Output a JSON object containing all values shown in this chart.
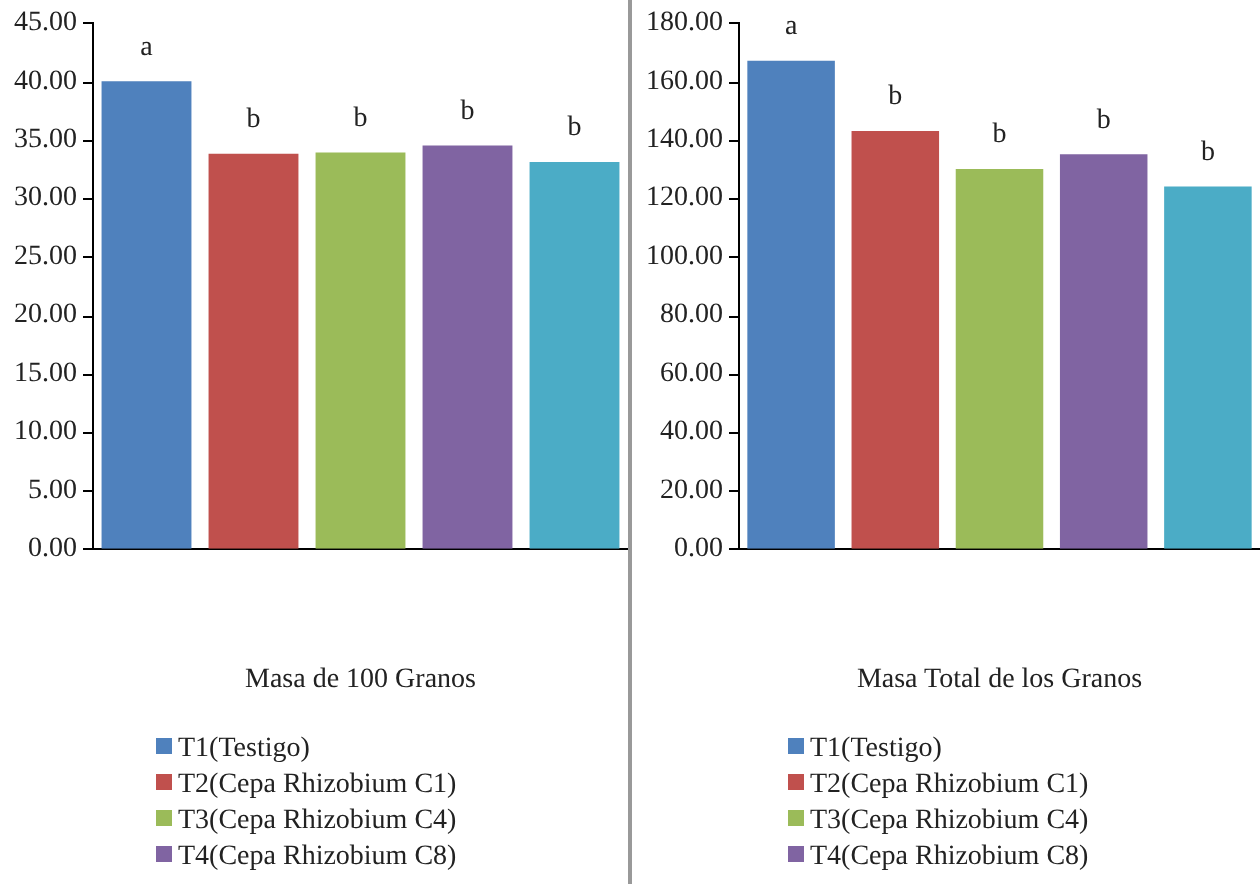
{
  "chart_data": [
    {
      "type": "bar",
      "categories": [
        null,
        null,
        null,
        null,
        null
      ],
      "xlabel": "Masa de 100 Granos",
      "legend": "bottom",
      "ylim": [
        0,
        45
      ],
      "yticks": [
        {
          "value": 0,
          "label": "0.00"
        },
        {
          "value": 5,
          "label": "5.00"
        },
        {
          "value": 10,
          "label": "10.00"
        },
        {
          "value": 15,
          "label": "15.00"
        },
        {
          "value": 20,
          "label": "20.00"
        },
        {
          "value": 25,
          "label": "25.00"
        },
        {
          "value": 30,
          "label": "30.00"
        },
        {
          "value": 35,
          "label": "35.00"
        },
        {
          "value": 40,
          "label": "40.00"
        },
        {
          "value": 45,
          "label": "45.00"
        }
      ],
      "series": [
        {
          "name": "T1(Testigo)",
          "color": "#4f81bd",
          "values": [
            40.0,
            null,
            null,
            null,
            null
          ],
          "value_labels": [
            "a",
            null,
            null,
            null,
            null
          ]
        },
        {
          "name": "T2(Cepa Rhizobium C1)",
          "color": "#c0504d",
          "values": [
            null,
            33.8,
            null,
            null,
            null
          ],
          "value_labels": [
            null,
            "b",
            null,
            null,
            null
          ]
        },
        {
          "name": "T3(Cepa Rhizobium C4)",
          "color": "#9bbb59",
          "values": [
            null,
            null,
            33.9,
            null,
            null
          ],
          "value_labels": [
            null,
            null,
            "b",
            null,
            null
          ]
        },
        {
          "name": "T4(Cepa Rhizobium C8)",
          "color": "#8064a2",
          "values": [
            null,
            null,
            null,
            34.5,
            null
          ],
          "value_labels": [
            null,
            null,
            null,
            "b",
            null
          ]
        },
        {
          "color": "#4bacc6",
          "values": [
            null,
            null,
            null,
            null,
            33.1
          ],
          "value_labels": [
            null,
            null,
            null,
            null,
            "b"
          ]
        }
      ]
    },
    {
      "type": "bar",
      "categories": [
        null,
        null,
        null,
        null,
        null
      ],
      "xlabel": "Masa Total de los Granos",
      "legend": "bottom",
      "ylim": [
        0,
        180
      ],
      "yticks": [
        {
          "value": 0,
          "label": "0.00"
        },
        {
          "value": 20,
          "label": "20.00"
        },
        {
          "value": 40,
          "label": "40.00"
        },
        {
          "value": 60,
          "label": "60.00"
        },
        {
          "value": 80,
          "label": "80.00"
        },
        {
          "value": 100,
          "label": "100.00"
        },
        {
          "value": 120,
          "label": "120.00"
        },
        {
          "value": 140,
          "label": "140.00"
        },
        {
          "value": 160,
          "label": "160.00"
        },
        {
          "value": 180,
          "label": "180.00"
        }
      ],
      "series": [
        {
          "name": "T1(Testigo)",
          "color": "#4f81bd",
          "values": [
            167,
            null,
            null,
            null,
            null
          ],
          "value_labels": [
            "a",
            null,
            null,
            null,
            null
          ]
        },
        {
          "name": "T2(Cepa Rhizobium C1)",
          "color": "#c0504d",
          "values": [
            null,
            143,
            null,
            null,
            null
          ],
          "value_labels": [
            null,
            "b",
            null,
            null,
            null
          ]
        },
        {
          "name": "T3(Cepa Rhizobium C4)",
          "color": "#9bbb59",
          "values": [
            null,
            null,
            130,
            null,
            null
          ],
          "value_labels": [
            null,
            null,
            "b",
            null,
            null
          ]
        },
        {
          "name": "T4(Cepa Rhizobium C8)",
          "color": "#8064a2",
          "values": [
            null,
            null,
            null,
            135,
            null
          ],
          "value_labels": [
            null,
            null,
            null,
            "b",
            null
          ]
        },
        {
          "color": "#4bacc6",
          "values": [
            null,
            null,
            null,
            null,
            124
          ],
          "value_labels": [
            null,
            null,
            null,
            null,
            "b"
          ]
        }
      ]
    }
  ]
}
